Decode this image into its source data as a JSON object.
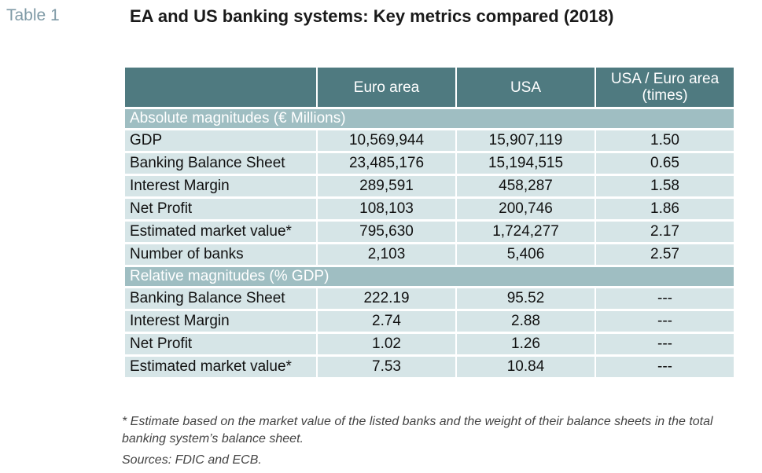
{
  "table_label": "Table 1",
  "title": "EA and US banking systems: Key metrics compared (2018)",
  "columns": [
    "Euro area",
    "USA",
    "USA / Euro area (times)"
  ],
  "sections": [
    {
      "heading": "Absolute magnitudes (€ Millions)",
      "rows": [
        {
          "label": "GDP",
          "ea": "10,569,944",
          "usa": "15,907,119",
          "ratio": "1.50"
        },
        {
          "label": "Banking Balance Sheet",
          "ea": "23,485,176",
          "usa": "15,194,515",
          "ratio": "0.65"
        },
        {
          "label": "Interest Margin",
          "ea": "289,591",
          "usa": "458,287",
          "ratio": "1.58"
        },
        {
          "label": "Net Profit",
          "ea": "108,103",
          "usa": "200,746",
          "ratio": "1.86"
        },
        {
          "label": "Estimated market value*",
          "ea": "795,630",
          "usa": "1,724,277",
          "ratio": "2.17"
        },
        {
          "label": "Number of banks",
          "ea": "2,103",
          "usa": "5,406",
          "ratio": "2.57"
        }
      ]
    },
    {
      "heading": "Relative magnitudes (% GDP)",
      "rows": [
        {
          "label": "Banking Balance Sheet",
          "ea": "222.19",
          "usa": "95.52",
          "ratio": "---"
        },
        {
          "label": "Interest Margin",
          "ea": "2.74",
          "usa": "2.88",
          "ratio": "---"
        },
        {
          "label": "Net Profit",
          "ea": "1.02",
          "usa": "1.26",
          "ratio": "---"
        },
        {
          "label": "Estimated market value*",
          "ea": "7.53",
          "usa": "10.84",
          "ratio": "---"
        }
      ]
    }
  ],
  "footnote": "* Estimate based on the market value of the listed banks and the weight of their balance sheets in the total banking system’s balance sheet.",
  "sources": "Sources: FDIC and ECB."
}
